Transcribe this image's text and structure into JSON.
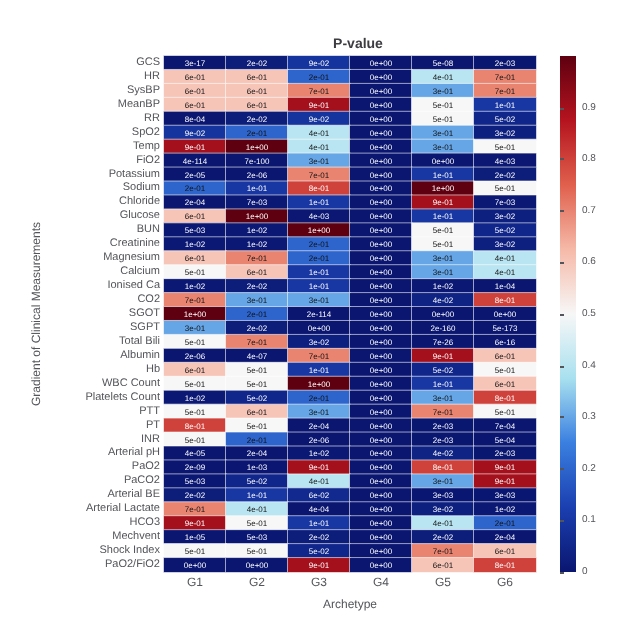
{
  "chart_data": {
    "type": "heatmap",
    "title": "P-value",
    "xlabel": "Archetype",
    "ylabel": "Gradient of Clinical Measurements",
    "categories": [
      "G1",
      "G2",
      "G3",
      "G4",
      "G5",
      "G6"
    ],
    "y_categories": [
      "GCS",
      "HR",
      "SysBP",
      "MeanBP",
      "RR",
      "SpO2",
      "Temp",
      "FiO2",
      "Potassium",
      "Sodium",
      "Chloride",
      "Glucose",
      "BUN",
      "Creatinine",
      "Magnesium",
      "Calcium",
      "Ionised Ca",
      "CO2",
      "SGOT",
      "SGPT",
      "Total Bili",
      "Albumin",
      "Hb",
      "WBC Count",
      "Platelets Count",
      "PTT",
      "PT",
      "INR",
      "Arterial pH",
      "PaO2",
      "PaCO2",
      "Arterial BE",
      "Arterial Lactate",
      "HCO3",
      "Mechvent",
      "Shock Index",
      "PaO2/FiO2"
    ],
    "cells": [
      [
        3e-17,
        0.02,
        0.09,
        0,
        5e-08,
        0.002
      ],
      [
        0.6,
        0.6,
        0.2,
        0,
        0.4,
        0.7
      ],
      [
        0.6,
        0.6,
        0.7,
        0,
        0.3,
        0.7
      ],
      [
        0.6,
        0.6,
        0.9,
        0,
        0.5,
        0.1
      ],
      [
        0.0008,
        0.02,
        0.09,
        0,
        0.5,
        0.05
      ],
      [
        0.09,
        0.2,
        0.4,
        0,
        0.3,
        0.03
      ],
      [
        0.9,
        1,
        0.4,
        0,
        0.3,
        0.5
      ],
      [
        4e-114,
        7e-100,
        0.3,
        0,
        0,
        0.004
      ],
      [
        2e-05,
        2e-06,
        0.7,
        0,
        0.1,
        0.02
      ],
      [
        0.2,
        0.1,
        0.8,
        0,
        1,
        0.5
      ],
      [
        0.0002,
        0.007,
        0.1,
        0,
        0.9,
        0.007
      ],
      [
        0.6,
        1,
        0.004,
        0,
        0.1,
        0.03
      ],
      [
        0.005,
        0.01,
        1,
        0,
        0.5,
        0.05
      ],
      [
        0.01,
        0.01,
        0.2,
        0,
        0.5,
        0.03
      ],
      [
        0.6,
        0.7,
        0.2,
        0,
        0.3,
        0.4
      ],
      [
        0.5,
        0.6,
        0.1,
        0,
        0.3,
        0.4
      ],
      [
        0.01,
        0.02,
        0.1,
        0,
        0.01,
        0.0001
      ],
      [
        0.7,
        0.3,
        0.3,
        0,
        0.04,
        0.8
      ],
      [
        1,
        0.2,
        2e-114,
        0,
        0,
        0
      ],
      [
        0.3,
        0.02,
        0,
        0,
        2e-160,
        5e-173
      ],
      [
        0.5,
        0.7,
        0.03,
        0,
        7e-26,
        6e-16
      ],
      [
        2e-06,
        4e-07,
        0.7,
        0,
        0.9,
        0.6
      ],
      [
        0.6,
        0.5,
        0.1,
        0,
        0.05,
        0.5
      ],
      [
        0.5,
        0.5,
        1,
        0,
        0.1,
        0.6
      ],
      [
        0.01,
        0.05,
        0.2,
        0,
        0.3,
        0.8
      ],
      [
        0.5,
        0.6,
        0.3,
        0,
        0.7,
        0.5
      ],
      [
        0.8,
        0.5,
        0.0002,
        0,
        0.002,
        0.0007
      ],
      [
        0.5,
        0.2,
        2e-06,
        0,
        0.002,
        0.0005
      ],
      [
        4e-05,
        0.0002,
        0.01,
        0,
        0.04,
        0.002
      ],
      [
        2e-09,
        0.001,
        0.9,
        0,
        0.8,
        0.9
      ],
      [
        0.005,
        0.05,
        0.4,
        0,
        0.3,
        0.9
      ],
      [
        0.02,
        0.1,
        0.06,
        0,
        0.003,
        0.003
      ],
      [
        0.7,
        0.4,
        0.0004,
        0,
        0.03,
        0.01
      ],
      [
        0.9,
        0.5,
        0.1,
        0,
        0.4,
        0.2
      ],
      [
        1e-05,
        0.005,
        0.02,
        0,
        0.02,
        0.0002
      ],
      [
        0.5,
        0.5,
        0.05,
        0,
        0.7,
        0.6
      ],
      [
        0,
        0,
        0.9,
        0,
        0.6,
        0.8
      ]
    ],
    "cell_labels": [
      [
        "3e-17",
        "2e-02",
        "9e-02",
        "0e+00",
        "5e-08",
        "2e-03"
      ],
      [
        "6e-01",
        "6e-01",
        "2e-01",
        "0e+00",
        "4e-01",
        "7e-01"
      ],
      [
        "6e-01",
        "6e-01",
        "7e-01",
        "0e+00",
        "3e-01",
        "7e-01"
      ],
      [
        "6e-01",
        "6e-01",
        "9e-01",
        "0e+00",
        "5e-01",
        "1e-01"
      ],
      [
        "8e-04",
        "2e-02",
        "9e-02",
        "0e+00",
        "5e-01",
        "5e-02"
      ],
      [
        "9e-02",
        "2e-01",
        "4e-01",
        "0e+00",
        "3e-01",
        "3e-02"
      ],
      [
        "9e-01",
        "1e+00",
        "4e-01",
        "0e+00",
        "3e-01",
        "5e-01"
      ],
      [
        "4e-114",
        "7e-100",
        "3e-01",
        "0e+00",
        "0e+00",
        "4e-03"
      ],
      [
        "2e-05",
        "2e-06",
        "7e-01",
        "0e+00",
        "1e-01",
        "2e-02"
      ],
      [
        "2e-01",
        "1e-01",
        "8e-01",
        "0e+00",
        "1e+00",
        "5e-01"
      ],
      [
        "2e-04",
        "7e-03",
        "1e-01",
        "0e+00",
        "9e-01",
        "7e-03"
      ],
      [
        "6e-01",
        "1e+00",
        "4e-03",
        "0e+00",
        "1e-01",
        "3e-02"
      ],
      [
        "5e-03",
        "1e-02",
        "1e+00",
        "0e+00",
        "5e-01",
        "5e-02"
      ],
      [
        "1e-02",
        "1e-02",
        "2e-01",
        "0e+00",
        "5e-01",
        "3e-02"
      ],
      [
        "6e-01",
        "7e-01",
        "2e-01",
        "0e+00",
        "3e-01",
        "4e-01"
      ],
      [
        "5e-01",
        "6e-01",
        "1e-01",
        "0e+00",
        "3e-01",
        "4e-01"
      ],
      [
        "1e-02",
        "2e-02",
        "1e-01",
        "0e+00",
        "1e-02",
        "1e-04"
      ],
      [
        "7e-01",
        "3e-01",
        "3e-01",
        "0e+00",
        "4e-02",
        "8e-01"
      ],
      [
        "1e+00",
        "2e-01",
        "2e-114",
        "0e+00",
        "0e+00",
        "0e+00"
      ],
      [
        "3e-01",
        "2e-02",
        "0e+00",
        "0e+00",
        "2e-160",
        "5e-173"
      ],
      [
        "5e-01",
        "7e-01",
        "3e-02",
        "0e+00",
        "7e-26",
        "6e-16"
      ],
      [
        "2e-06",
        "4e-07",
        "7e-01",
        "0e+00",
        "9e-01",
        "6e-01"
      ],
      [
        "6e-01",
        "5e-01",
        "1e-01",
        "0e+00",
        "5e-02",
        "5e-01"
      ],
      [
        "5e-01",
        "5e-01",
        "1e+00",
        "0e+00",
        "1e-01",
        "6e-01"
      ],
      [
        "1e-02",
        "5e-02",
        "2e-01",
        "0e+00",
        "3e-01",
        "8e-01"
      ],
      [
        "5e-01",
        "6e-01",
        "3e-01",
        "0e+00",
        "7e-01",
        "5e-01"
      ],
      [
        "8e-01",
        "5e-01",
        "2e-04",
        "0e+00",
        "2e-03",
        "7e-04"
      ],
      [
        "5e-01",
        "2e-01",
        "2e-06",
        "0e+00",
        "2e-03",
        "5e-04"
      ],
      [
        "4e-05",
        "2e-04",
        "1e-02",
        "0e+00",
        "4e-02",
        "2e-03"
      ],
      [
        "2e-09",
        "1e-03",
        "9e-01",
        "0e+00",
        "8e-01",
        "9e-01"
      ],
      [
        "5e-03",
        "5e-02",
        "4e-01",
        "0e+00",
        "3e-01",
        "9e-01"
      ],
      [
        "2e-02",
        "1e-01",
        "6e-02",
        "0e+00",
        "3e-03",
        "3e-03"
      ],
      [
        "7e-01",
        "4e-01",
        "4e-04",
        "0e+00",
        "3e-02",
        "1e-02"
      ],
      [
        "9e-01",
        "5e-01",
        "1e-01",
        "0e+00",
        "4e-01",
        "2e-01"
      ],
      [
        "1e-05",
        "5e-03",
        "2e-02",
        "0e+00",
        "2e-02",
        "2e-04"
      ],
      [
        "5e-01",
        "5e-01",
        "5e-02",
        "0e+00",
        "7e-01",
        "6e-01"
      ],
      [
        "0e+00",
        "0e+00",
        "9e-01",
        "0e+00",
        "6e-01",
        "8e-01"
      ]
    ],
    "clim": [
      0,
      1
    ],
    "cticks": [
      0,
      0.1,
      0.2,
      0.3,
      0.4,
      0.5,
      0.6,
      0.7,
      0.8,
      0.9
    ]
  }
}
